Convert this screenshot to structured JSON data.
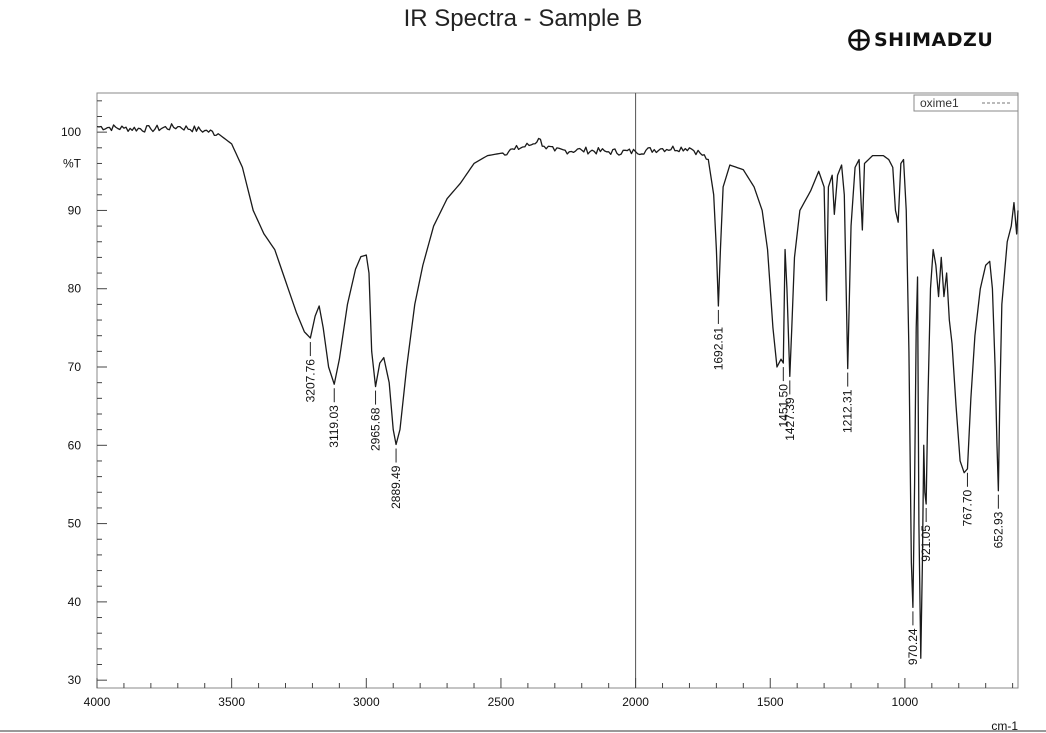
{
  "header": {
    "title": "IR Spectra - Sample B",
    "brand": "SHIMADZU",
    "brand_icon": "shimadzu-logo-icon"
  },
  "chart_data": {
    "type": "line",
    "title": "IR Spectra - Sample B",
    "xlabel": "",
    "ylabel": "%T",
    "x_unit": "cm-1",
    "xlim": [
      4000,
      580
    ],
    "ylim": [
      29,
      105
    ],
    "x_ticks": [
      4000,
      3500,
      3000,
      2500,
      2000,
      1500,
      1000
    ],
    "y_ticks": [
      30,
      40,
      50,
      60,
      70,
      80,
      90,
      100
    ],
    "grid": false,
    "reference_line_x": 2000,
    "legend": {
      "position": "top-right",
      "entries": [
        "oxime1"
      ]
    },
    "series": [
      {
        "name": "oxime1",
        "color": "#1a1a1a",
        "points": [
          [
            4000,
            100.7
          ],
          [
            3900,
            100.5
          ],
          [
            3800,
            100.4
          ],
          [
            3700,
            100.7
          ],
          [
            3600,
            100.2
          ],
          [
            3550,
            99.8
          ],
          [
            3500,
            98.5
          ],
          [
            3460,
            95.5
          ],
          [
            3420,
            90
          ],
          [
            3380,
            87
          ],
          [
            3340,
            85
          ],
          [
            3300,
            81
          ],
          [
            3260,
            77
          ],
          [
            3230,
            74.5
          ],
          [
            3207.76,
            73.7
          ],
          [
            3190,
            76.5
          ],
          [
            3175,
            77.8
          ],
          [
            3160,
            75
          ],
          [
            3140,
            70
          ],
          [
            3119.03,
            67.8
          ],
          [
            3100,
            71
          ],
          [
            3070,
            78
          ],
          [
            3040,
            82.5
          ],
          [
            3020,
            84.1
          ],
          [
            3000,
            84.3
          ],
          [
            2990,
            82
          ],
          [
            2980,
            72
          ],
          [
            2965.68,
            67.5
          ],
          [
            2950,
            70.5
          ],
          [
            2935,
            71.2
          ],
          [
            2915,
            68
          ],
          [
            2900,
            62
          ],
          [
            2889.49,
            60.1
          ],
          [
            2875,
            62
          ],
          [
            2850,
            70
          ],
          [
            2820,
            78
          ],
          [
            2790,
            83
          ],
          [
            2750,
            88
          ],
          [
            2700,
            91.5
          ],
          [
            2650,
            93.5
          ],
          [
            2600,
            96
          ],
          [
            2550,
            97
          ],
          [
            2500,
            97.3
          ],
          [
            2450,
            97.8
          ],
          [
            2380,
            98.5
          ],
          [
            2360,
            99.2
          ],
          [
            2340,
            98.2
          ],
          [
            2300,
            97.6
          ],
          [
            2200,
            97.7
          ],
          [
            2100,
            97.5
          ],
          [
            2000,
            97.5
          ],
          [
            1900,
            97.9
          ],
          [
            1800,
            98
          ],
          [
            1760,
            97.3
          ],
          [
            1730,
            96.5
          ],
          [
            1710,
            92
          ],
          [
            1700,
            85
          ],
          [
            1692.61,
            77.8
          ],
          [
            1685,
            85
          ],
          [
            1675,
            93
          ],
          [
            1650,
            95.8
          ],
          [
            1600,
            95.2
          ],
          [
            1560,
            93
          ],
          [
            1530,
            90
          ],
          [
            1510,
            85
          ],
          [
            1490,
            75
          ],
          [
            1475,
            70
          ],
          [
            1460,
            71
          ],
          [
            1451.5,
            70.5
          ],
          [
            1445,
            85
          ],
          [
            1438,
            80
          ],
          [
            1427.39,
            68.8
          ],
          [
            1420,
            75
          ],
          [
            1410,
            84
          ],
          [
            1390,
            90
          ],
          [
            1350,
            92.5
          ],
          [
            1320,
            95
          ],
          [
            1300,
            93
          ],
          [
            1291,
            78.5
          ],
          [
            1284,
            93
          ],
          [
            1270,
            94.5
          ],
          [
            1262,
            89.5
          ],
          [
            1250,
            94.5
          ],
          [
            1235,
            95.8
          ],
          [
            1225,
            92
          ],
          [
            1212.31,
            69.8
          ],
          [
            1200,
            88
          ],
          [
            1185,
            95.5
          ],
          [
            1170,
            96.5
          ],
          [
            1158,
            87.5
          ],
          [
            1150,
            96
          ],
          [
            1120,
            97
          ],
          [
            1080,
            97
          ],
          [
            1060,
            96.5
          ],
          [
            1045,
            95.5
          ],
          [
            1035,
            90
          ],
          [
            1025,
            88.5
          ],
          [
            1015,
            96
          ],
          [
            1005,
            96.5
          ],
          [
            995,
            90
          ],
          [
            985,
            72
          ],
          [
            976,
            45
          ],
          [
            970.24,
            39.3
          ],
          [
            964,
            55
          ],
          [
            958,
            75
          ],
          [
            953,
            81.5
          ],
          [
            948,
            50
          ],
          [
            941,
            32.8
          ],
          [
            935,
            45
          ],
          [
            930,
            60
          ],
          [
            926,
            54
          ],
          [
            921.05,
            52.5
          ],
          [
            915,
            65
          ],
          [
            905,
            80
          ],
          [
            895,
            85
          ],
          [
            885,
            83
          ],
          [
            875,
            79
          ],
          [
            865,
            84
          ],
          [
            855,
            79
          ],
          [
            845,
            82
          ],
          [
            835,
            76
          ],
          [
            825,
            73
          ],
          [
            810,
            65
          ],
          [
            795,
            58
          ],
          [
            780,
            56.5
          ],
          [
            767.7,
            57
          ],
          [
            755,
            66
          ],
          [
            740,
            74
          ],
          [
            720,
            80
          ],
          [
            700,
            83
          ],
          [
            685,
            83.5
          ],
          [
            675,
            80
          ],
          [
            665,
            70
          ],
          [
            658,
            60
          ],
          [
            652.93,
            54.2
          ],
          [
            648,
            65
          ],
          [
            640,
            78
          ],
          [
            630,
            82
          ],
          [
            620,
            86
          ],
          [
            605,
            88
          ],
          [
            595,
            91
          ],
          [
            585,
            87
          ],
          [
            580,
            90
          ]
        ]
      }
    ],
    "peaks": [
      {
        "x": 3207.76,
        "y": 73.7,
        "label": "3207.76"
      },
      {
        "x": 3119.03,
        "y": 67.8,
        "label": "3119.03"
      },
      {
        "x": 2965.68,
        "y": 67.5,
        "label": "2965.68"
      },
      {
        "x": 2889.49,
        "y": 60.1,
        "label": "2889.49"
      },
      {
        "x": 1692.61,
        "y": 77.8,
        "label": "1692.61"
      },
      {
        "x": 1451.5,
        "y": 70.5,
        "label": "1451.50"
      },
      {
        "x": 1427.39,
        "y": 68.8,
        "label": "1427.39"
      },
      {
        "x": 1212.31,
        "y": 69.8,
        "label": "1212.31"
      },
      {
        "x": 970.24,
        "y": 39.3,
        "label": "970.24"
      },
      {
        "x": 921.05,
        "y": 52.5,
        "label": "921.05"
      },
      {
        "x": 767.7,
        "y": 57,
        "label": "767.70"
      },
      {
        "x": 652.93,
        "y": 54.2,
        "label": "652.93"
      }
    ]
  }
}
